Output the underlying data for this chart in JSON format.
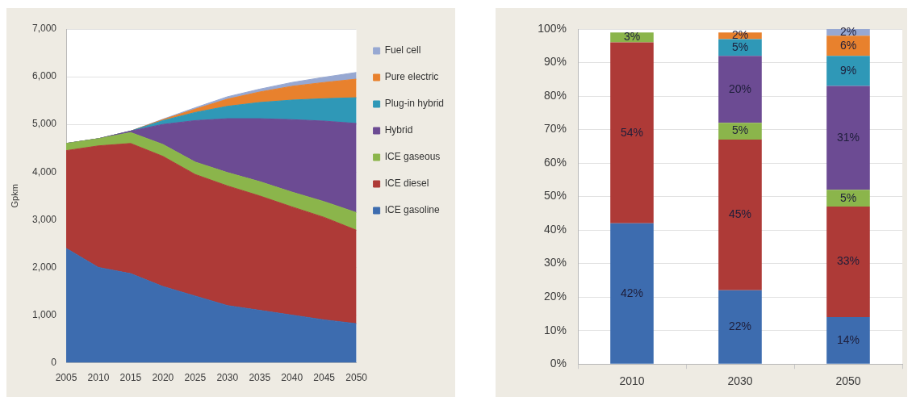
{
  "chart_data": [
    {
      "type": "area",
      "ylabel": "Gpkm",
      "x": [
        2005,
        2010,
        2015,
        2020,
        2025,
        2030,
        2035,
        2040,
        2045,
        2050
      ],
      "xlim": [
        2005,
        2050
      ],
      "xticks": [
        2005,
        2010,
        2015,
        2020,
        2025,
        2030,
        2035,
        2040,
        2045,
        2050
      ],
      "ylim": [
        0,
        7000
      ],
      "yticks": [
        {
          "value": 0,
          "label": "0"
        },
        {
          "value": 1000,
          "label": "1,000"
        },
        {
          "value": 2000,
          "label": "2,000"
        },
        {
          "value": 3000,
          "label": "3,000"
        },
        {
          "value": 4000,
          "label": "4,000"
        },
        {
          "value": 5000,
          "label": "5,000"
        },
        {
          "value": 6000,
          "label": "6,000"
        },
        {
          "value": 7000,
          "label": "7,000"
        }
      ],
      "stacked": true,
      "grid": "y",
      "legend": "top right",
      "series": [
        {
          "name": "ICE gasoline",
          "color": "#3d6caf",
          "values": [
            2400,
            2000,
            1870,
            1600,
            1400,
            1200,
            1100,
            1000,
            900,
            820
          ]
        },
        {
          "name": "ICE diesel",
          "color": "#ae3a37",
          "values": [
            2050,
            2550,
            2730,
            2730,
            2550,
            2510,
            2400,
            2270,
            2150,
            1960
          ]
        },
        {
          "name": "ICE gaseous",
          "color": "#8bb54b",
          "values": [
            150,
            150,
            230,
            250,
            260,
            280,
            300,
            310,
            330,
            370
          ]
        },
        {
          "name": "Hybrid",
          "color": "#6c4b93",
          "values": [
            0,
            0,
            30,
            420,
            870,
            1130,
            1320,
            1520,
            1690,
            1870
          ]
        },
        {
          "name": "Plug-in hybrid",
          "color": "#2f98b7",
          "values": [
            0,
            0,
            0,
            80,
            170,
            260,
            340,
            410,
            470,
            540
          ]
        },
        {
          "name": "Pure electric",
          "color": "#e8812d",
          "values": [
            0,
            0,
            0,
            20,
            70,
            150,
            220,
            290,
            340,
            390
          ]
        },
        {
          "name": "Fuel cell",
          "color": "#97a8d2",
          "values": [
            0,
            0,
            0,
            10,
            30,
            50,
            60,
            80,
            110,
            140
          ]
        }
      ]
    },
    {
      "type": "bar",
      "categories": [
        "2010",
        "2030",
        "2050"
      ],
      "ylim": [
        0,
        100
      ],
      "yticks": [
        {
          "value": 0,
          "label": "0%"
        },
        {
          "value": 10,
          "label": "10%"
        },
        {
          "value": 20,
          "label": "20%"
        },
        {
          "value": 30,
          "label": "30%"
        },
        {
          "value": 40,
          "label": "40%"
        },
        {
          "value": 50,
          "label": "50%"
        },
        {
          "value": 60,
          "label": "60%"
        },
        {
          "value": 70,
          "label": "70%"
        },
        {
          "value": 80,
          "label": "80%"
        },
        {
          "value": 90,
          "label": "90%"
        },
        {
          "value": 100,
          "label": "100%"
        }
      ],
      "stacked": true,
      "grid": "y",
      "series": [
        {
          "color": "#3d6caf",
          "values": [
            42,
            22,
            14
          ],
          "value_labels": [
            "42%",
            "22%",
            "14%"
          ]
        },
        {
          "color": "#ae3a37",
          "values": [
            54,
            45,
            33
          ],
          "value_labels": [
            "54%",
            "45%",
            "33%"
          ]
        },
        {
          "color": "#8bb54b",
          "values": [
            3,
            5,
            5
          ],
          "value_labels": [
            "3%",
            "5%",
            "5%"
          ]
        },
        {
          "color": "#6c4b93",
          "values": [
            null,
            20,
            31
          ],
          "value_labels": [
            null,
            "20%",
            "31%"
          ]
        },
        {
          "color": "#2f98b7",
          "values": [
            null,
            5,
            9
          ],
          "value_labels": [
            null,
            "5%",
            "9%"
          ]
        },
        {
          "color": "#e8812d",
          "values": [
            null,
            2,
            6
          ],
          "value_labels": [
            null,
            "2%",
            "6%"
          ]
        },
        {
          "color": "#97a8d2",
          "values": [
            null,
            null,
            2
          ],
          "value_labels": [
            null,
            null,
            "2%"
          ]
        }
      ]
    }
  ]
}
